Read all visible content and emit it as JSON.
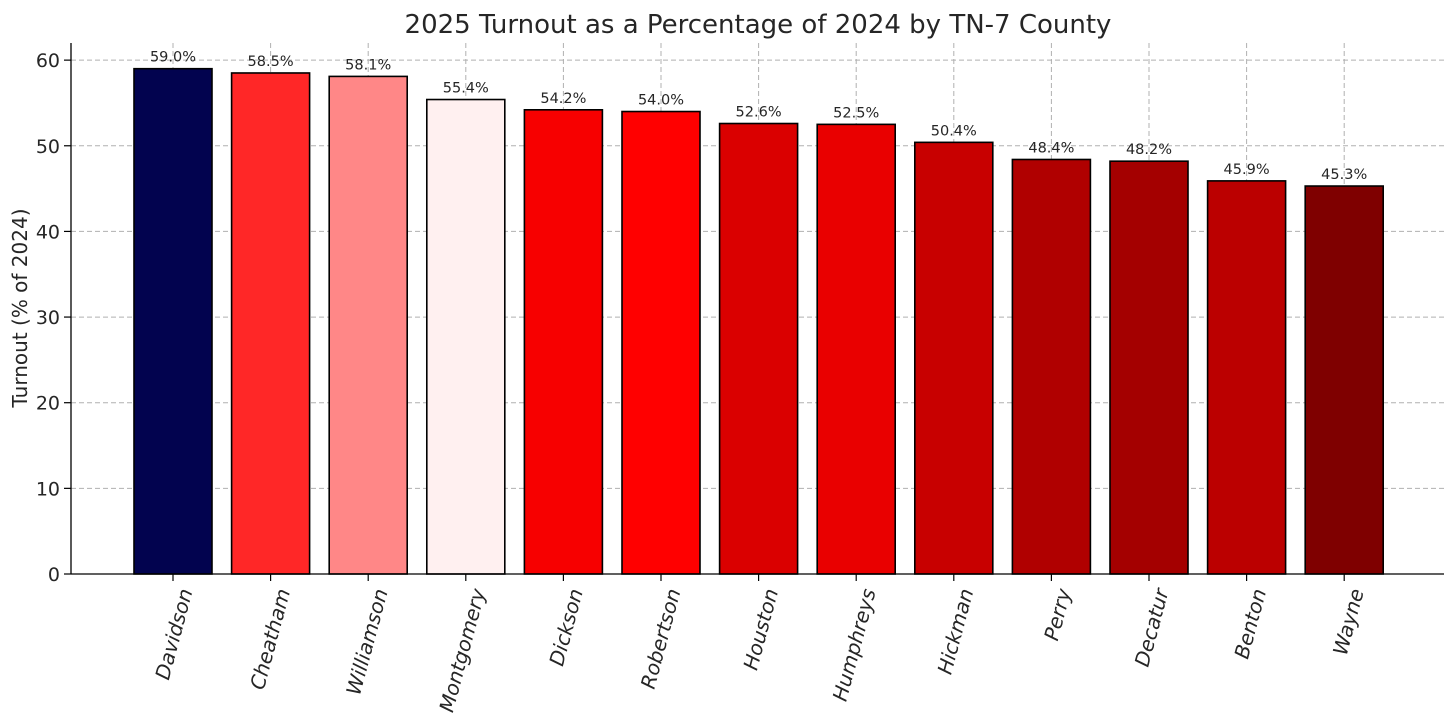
{
  "chart_data": {
    "type": "bar",
    "title": "2025 Turnout as a Percentage of 2024 by TN-7 County",
    "xlabel": "",
    "ylabel": "Turnout (% of 2024)",
    "ylim": [
      0,
      62
    ],
    "yticks": [
      0,
      10,
      20,
      30,
      40,
      50,
      60
    ],
    "grid": true,
    "categories": [
      "Davidson",
      "Cheatham",
      "Williamson",
      "Montgomery",
      "Dickson",
      "Robertson",
      "Houston",
      "Humphreys",
      "Hickman",
      "Perry",
      "Decatur",
      "Benton",
      "Wayne"
    ],
    "values": [
      59.0,
      58.5,
      58.1,
      55.4,
      54.2,
      54.0,
      52.6,
      52.5,
      50.4,
      48.4,
      48.2,
      45.9,
      45.3
    ],
    "value_labels": [
      "59.0%",
      "58.5%",
      "58.1%",
      "55.4%",
      "54.2%",
      "54.0%",
      "52.6%",
      "52.5%",
      "50.4%",
      "48.4%",
      "48.2%",
      "45.9%",
      "45.3%"
    ],
    "colors": [
      "#02034f",
      "#ff2727",
      "#ff8787",
      "#fff0f0",
      "#f70000",
      "#ff0000",
      "#da0000",
      "#e90000",
      "#c80000",
      "#b00000",
      "#a40000",
      "#bb0000",
      "#7f0000"
    ]
  }
}
